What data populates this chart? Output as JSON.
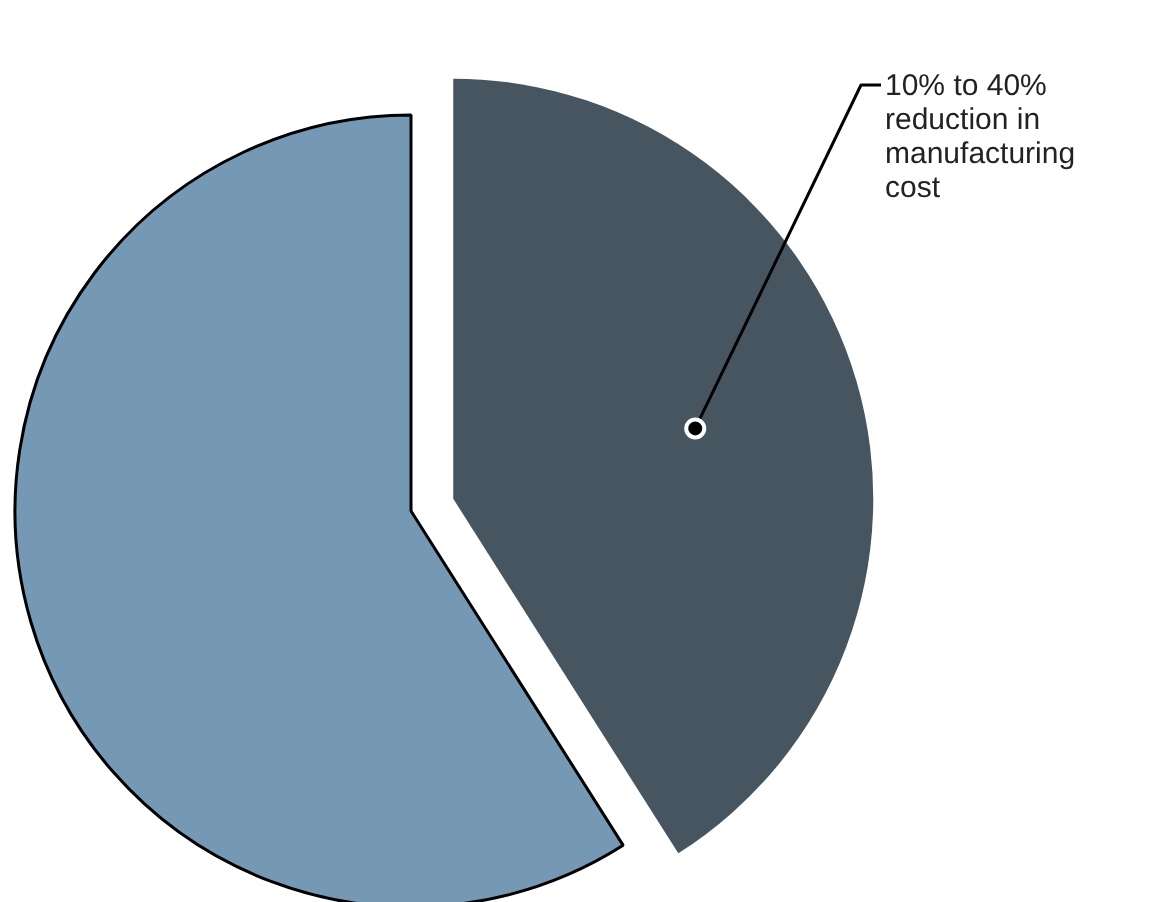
{
  "chart_data": {
    "type": "pie",
    "categories": [
      null,
      "10% to 40%\nreduction in\nmanufacturing\ncost"
    ],
    "values": [
      59,
      41
    ],
    "colors": [
      "#7598b5",
      "#46555f"
    ]
  }
}
